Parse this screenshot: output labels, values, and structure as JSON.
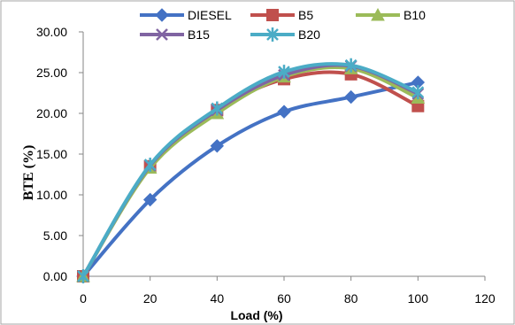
{
  "chart_data": {
    "type": "line",
    "xlabel": "Load (%)",
    "ylabel": "BTE (%)",
    "xlim": [
      0,
      120
    ],
    "ylim": [
      0,
      30
    ],
    "x_ticks": [
      "0",
      "20",
      "40",
      "60",
      "80",
      "100",
      "120"
    ],
    "y_ticks": [
      "0.00",
      "5.00",
      "10.00",
      "15.00",
      "20.00",
      "25.00",
      "30.00"
    ],
    "grid": false,
    "legend_position": "top",
    "x": [
      0,
      20,
      40,
      60,
      80,
      100
    ],
    "series": [
      {
        "name": "DIESEL",
        "color": "#4472C4",
        "marker": "diamond",
        "values": [
          0,
          9.4,
          16.0,
          20.2,
          22.0,
          23.8
        ]
      },
      {
        "name": "B5",
        "color": "#C0504D",
        "marker": "square",
        "values": [
          0,
          13.5,
          20.4,
          24.2,
          24.8,
          20.9
        ]
      },
      {
        "name": "B10",
        "color": "#9BBB59",
        "marker": "triangle",
        "values": [
          0,
          13.3,
          20.0,
          24.5,
          25.5,
          21.9
        ]
      },
      {
        "name": "B15",
        "color": "#8064A2",
        "marker": "x",
        "values": [
          0,
          13.6,
          20.4,
          24.7,
          25.8,
          22.4
        ]
      },
      {
        "name": "B20",
        "color": "#4BACC6",
        "marker": "star",
        "values": [
          0,
          13.7,
          20.6,
          25.1,
          25.9,
          22.6
        ]
      }
    ]
  }
}
